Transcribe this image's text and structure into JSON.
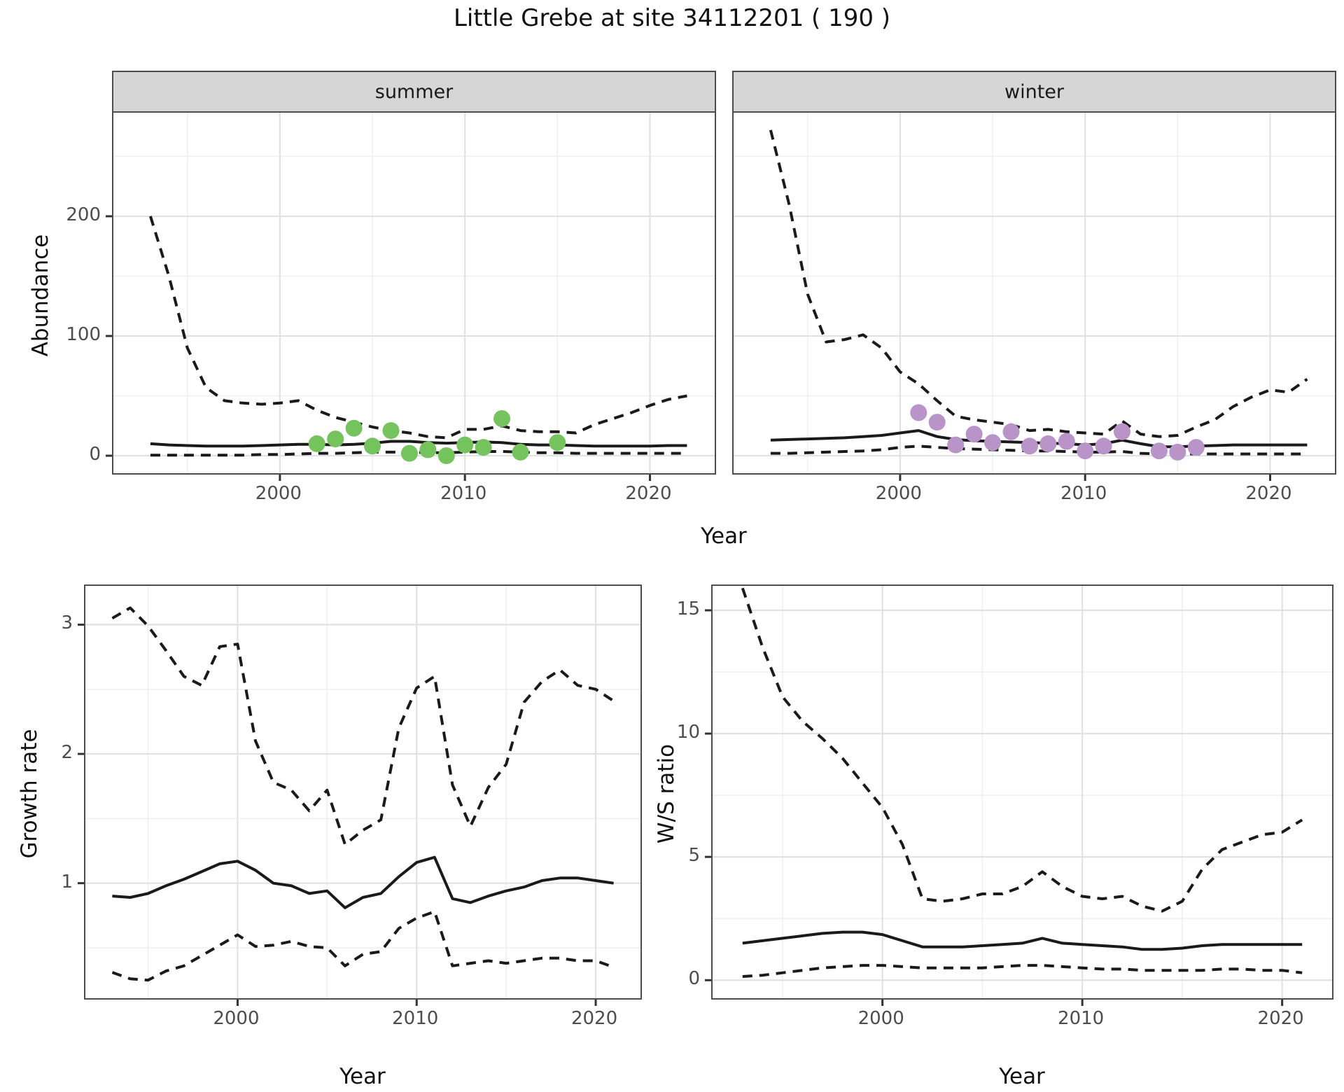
{
  "title": "Little Grebe at site 34112201 ( 190 )",
  "axis": {
    "year": "Year",
    "abundance": "Abundance",
    "growth_rate": "Growth rate",
    "ws_ratio": "W/S ratio"
  },
  "facets": [
    {
      "label": "summer"
    },
    {
      "label": "winter"
    }
  ],
  "colors": {
    "summer_point": "#74c35c",
    "winter_point": "#b894c8",
    "line": "#1a1a1a",
    "grid_major": "#e2e2e2",
    "grid_minor": "#efefef",
    "strip_bg": "#d6d6d6",
    "panel_border": "#4d4d4d",
    "tick_text": "#4d4d4d"
  },
  "chart_data": [
    {
      "id": "abundance-summer",
      "type": "line",
      "facet": "summer",
      "title": "",
      "xlabel": "Year",
      "ylabel": "Abundance",
      "x": [
        1993,
        1994,
        1995,
        1996,
        1997,
        1998,
        1999,
        2000,
        2001,
        2002,
        2003,
        2004,
        2005,
        2006,
        2007,
        2008,
        2009,
        2010,
        2011,
        2012,
        2013,
        2014,
        2015,
        2016,
        2017,
        2018,
        2019,
        2020,
        2021,
        2022
      ],
      "series": [
        {
          "name": "upper_quantile",
          "style": "dashed",
          "values": [
            200,
            150,
            90,
            57,
            46,
            44,
            43,
            44,
            46,
            38,
            32,
            28,
            24,
            21,
            19,
            16,
            15,
            22,
            22,
            25,
            21,
            20,
            20,
            19,
            26,
            31,
            36,
            42,
            47,
            50
          ]
        },
        {
          "name": "median",
          "style": "solid",
          "values": [
            10,
            9,
            8.5,
            8,
            8,
            8,
            8.5,
            9,
            9.5,
            9.5,
            9,
            9.5,
            10.5,
            12,
            12,
            11,
            10.5,
            11,
            11.5,
            11,
            9.5,
            9,
            9,
            8.5,
            8,
            8,
            8,
            8,
            8.5,
            8.5
          ]
        },
        {
          "name": "lower_quantile",
          "style": "dashed",
          "values": [
            0.5,
            0.5,
            0.5,
            0.5,
            0.5,
            0.5,
            1,
            1,
            1.5,
            2,
            2,
            2.5,
            3,
            3,
            3,
            2.5,
            2.5,
            3,
            3.5,
            3.5,
            3,
            2.5,
            2.5,
            2,
            2,
            2,
            2,
            2,
            2,
            2
          ]
        }
      ],
      "points": {
        "name": "observed-counts-summer",
        "color_key": "summer_point",
        "x": [
          2002,
          2003,
          2004,
          2005,
          2006,
          2007,
          2008,
          2009,
          2010,
          2011,
          2012,
          2013,
          2015
        ],
        "y": [
          10,
          14,
          23,
          8,
          21,
          2,
          5,
          0,
          9,
          7,
          31,
          3,
          11
        ]
      },
      "xlim": [
        1991.0,
        2023.5
      ],
      "ylim": [
        -14.6,
        286.5
      ],
      "xticks": {
        "major": [
          2000,
          2010,
          2020
        ],
        "major_labels": [
          "2000",
          "2010",
          "2020"
        ],
        "minor": [
          1995,
          2005,
          2015
        ]
      },
      "yticks": {
        "major": [
          0,
          100,
          200
        ],
        "major_labels": [
          "0",
          "100",
          "200"
        ],
        "minor": [
          50,
          150,
          250
        ]
      },
      "grid": true,
      "legend": "none"
    },
    {
      "id": "abundance-winter",
      "type": "line",
      "facet": "winter",
      "title": "",
      "xlabel": "Year",
      "ylabel": "Abundance",
      "x": [
        1993,
        1994,
        1995,
        1996,
        1997,
        1998,
        1999,
        2000,
        2001,
        2002,
        2003,
        2004,
        2005,
        2006,
        2007,
        2008,
        2009,
        2010,
        2011,
        2012,
        2013,
        2014,
        2015,
        2016,
        2017,
        2018,
        2019,
        2020,
        2021,
        2022
      ],
      "series": [
        {
          "name": "upper_quantile",
          "style": "dashed",
          "values": [
            272,
            210,
            135,
            95,
            97,
            101,
            90,
            70,
            60,
            46,
            33,
            30,
            28,
            26,
            21,
            22,
            20,
            19,
            18,
            29,
            18,
            16,
            17,
            24,
            30,
            41,
            49,
            55,
            53,
            64
          ]
        },
        {
          "name": "median",
          "style": "solid",
          "values": [
            13,
            13.5,
            14,
            14.5,
            15,
            16,
            17,
            19,
            21,
            16,
            13.5,
            12.5,
            12,
            11.5,
            11,
            10.5,
            10,
            9,
            10,
            13,
            10,
            7.5,
            7.5,
            8,
            8.5,
            9,
            9,
            9,
            9,
            9
          ]
        },
        {
          "name": "lower_quantile",
          "style": "dashed",
          "values": [
            2,
            2,
            2.5,
            3,
            3.5,
            4,
            5,
            7,
            8,
            7,
            6,
            5.5,
            5,
            4.5,
            4,
            4,
            3.5,
            3,
            3,
            3.5,
            2,
            1.5,
            1.5,
            1.5,
            1.5,
            1.5,
            1.5,
            1.5,
            1.5,
            1.5
          ]
        }
      ],
      "points": {
        "name": "observed-counts-winter",
        "color_key": "winter_point",
        "x": [
          2001,
          2002,
          2003,
          2004,
          2005,
          2006,
          2007,
          2008,
          2009,
          2010,
          2011,
          2012,
          2014,
          2015,
          2016
        ],
        "y": [
          36,
          28,
          9,
          18,
          11,
          20,
          8,
          10,
          12,
          4,
          8,
          20,
          4,
          3,
          7
        ]
      },
      "xlim": [
        1991.0,
        2023.5
      ],
      "ylim": [
        -14.6,
        286.5
      ],
      "xticks": {
        "major": [
          2000,
          2010,
          2020
        ],
        "major_labels": [
          "2000",
          "2010",
          "2020"
        ],
        "minor": [
          1995,
          2005,
          2015
        ]
      },
      "yticks": {
        "major": [
          0,
          100,
          200
        ],
        "major_labels": [
          "0",
          "100",
          "200"
        ],
        "minor": [
          50,
          150,
          250
        ]
      },
      "grid": true,
      "legend": "none"
    },
    {
      "id": "growth-rate",
      "type": "line",
      "facet": "",
      "title": "",
      "xlabel": "Year",
      "ylabel": "Growth rate",
      "x": [
        1993,
        1994,
        1995,
        1996,
        1997,
        1998,
        1999,
        2000,
        2001,
        2002,
        2003,
        2004,
        2005,
        2006,
        2007,
        2008,
        2009,
        2010,
        2011,
        2012,
        2013,
        2014,
        2015,
        2016,
        2017,
        2018,
        2019,
        2020,
        2021
      ],
      "series": [
        {
          "name": "upper_quantile",
          "style": "dashed",
          "values": [
            3.05,
            3.13,
            2.99,
            2.8,
            2.6,
            2.53,
            2.83,
            2.85,
            2.1,
            1.78,
            1.72,
            1.56,
            1.72,
            1.3,
            1.41,
            1.49,
            2.2,
            2.51,
            2.6,
            1.76,
            1.44,
            1.74,
            1.92,
            2.4,
            2.56,
            2.65,
            2.53,
            2.5,
            2.41
          ]
        },
        {
          "name": "median",
          "style": "solid",
          "values": [
            0.9,
            0.89,
            0.92,
            0.98,
            1.03,
            1.09,
            1.15,
            1.17,
            1.1,
            1.0,
            0.98,
            0.92,
            0.94,
            0.81,
            0.89,
            0.92,
            1.05,
            1.16,
            1.2,
            0.88,
            0.85,
            0.9,
            0.94,
            0.97,
            1.02,
            1.04,
            1.04,
            1.02,
            1.0
          ]
        },
        {
          "name": "lower_quantile",
          "style": "dashed",
          "values": [
            0.31,
            0.26,
            0.25,
            0.32,
            0.36,
            0.44,
            0.52,
            0.6,
            0.51,
            0.52,
            0.55,
            0.51,
            0.5,
            0.36,
            0.45,
            0.47,
            0.65,
            0.73,
            0.78,
            0.36,
            0.38,
            0.4,
            0.38,
            0.4,
            0.42,
            0.42,
            0.4,
            0.4,
            0.35
          ]
        }
      ],
      "points": null,
      "xlim": [
        1991.5,
        2022.5
      ],
      "ylim": [
        0.11,
        3.3
      ],
      "xticks": {
        "major": [
          2000,
          2010,
          2020
        ],
        "major_labels": [
          "2000",
          "2010",
          "2020"
        ],
        "minor": [
          1995,
          2005,
          2015
        ]
      },
      "yticks": {
        "major": [
          1,
          2,
          3
        ],
        "major_labels": [
          "1",
          "2",
          "3"
        ],
        "minor": [
          0.5,
          1.5,
          2.5
        ]
      },
      "grid": true,
      "legend": "none"
    },
    {
      "id": "ws-ratio",
      "type": "line",
      "facet": "",
      "title": "",
      "xlabel": "Year",
      "ylabel": "W/S ratio",
      "x": [
        1993,
        1994,
        1995,
        1996,
        1997,
        1998,
        1999,
        2000,
        2001,
        2002,
        2003,
        2004,
        2005,
        2006,
        2007,
        2008,
        2009,
        2010,
        2011,
        2012,
        2013,
        2014,
        2015,
        2016,
        2017,
        2018,
        2019,
        2020,
        2021
      ],
      "series": [
        {
          "name": "upper_quantile",
          "style": "dashed",
          "values": [
            15.9,
            13.5,
            11.5,
            10.5,
            9.8,
            9.0,
            8.0,
            7.0,
            5.5,
            3.3,
            3.2,
            3.3,
            3.5,
            3.5,
            3.8,
            4.4,
            3.8,
            3.4,
            3.3,
            3.4,
            3.0,
            2.8,
            3.2,
            4.5,
            5.3,
            5.6,
            5.9,
            6.0,
            6.5
          ]
        },
        {
          "name": "median",
          "style": "solid",
          "values": [
            1.5,
            1.6,
            1.7,
            1.8,
            1.9,
            1.95,
            1.95,
            1.85,
            1.6,
            1.35,
            1.35,
            1.35,
            1.4,
            1.45,
            1.5,
            1.7,
            1.5,
            1.45,
            1.4,
            1.35,
            1.25,
            1.25,
            1.3,
            1.4,
            1.45,
            1.45,
            1.45,
            1.45,
            1.45
          ]
        },
        {
          "name": "lower_quantile",
          "style": "dashed",
          "values": [
            0.15,
            0.2,
            0.3,
            0.4,
            0.5,
            0.55,
            0.6,
            0.6,
            0.55,
            0.5,
            0.5,
            0.5,
            0.5,
            0.55,
            0.6,
            0.6,
            0.55,
            0.5,
            0.45,
            0.45,
            0.4,
            0.4,
            0.4,
            0.4,
            0.45,
            0.45,
            0.4,
            0.4,
            0.3
          ]
        }
      ],
      "points": null,
      "xlim": [
        1991.5,
        2022.5
      ],
      "ylim": [
        -0.73,
        15.99
      ],
      "xticks": {
        "major": [
          2000,
          2010,
          2020
        ],
        "major_labels": [
          "2000",
          "2010",
          "2020"
        ],
        "minor": [
          1995,
          2005,
          2015
        ]
      },
      "yticks": {
        "major": [
          0,
          5,
          10,
          15
        ],
        "major_labels": [
          "0",
          "5",
          "10",
          "15"
        ],
        "minor": [
          2.5,
          7.5,
          12.5
        ]
      },
      "grid": true,
      "legend": "none"
    }
  ]
}
